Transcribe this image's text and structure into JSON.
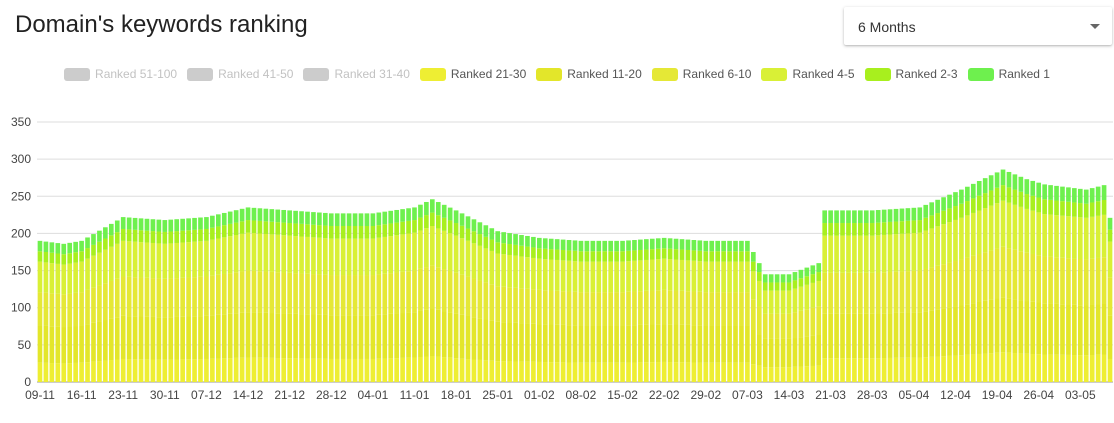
{
  "header": {
    "title": "Domain's keywords ranking",
    "period_value": "6 Months"
  },
  "colors": {
    "Ranked 51-100": "#cccccc",
    "Ranked 41-50": "#cccccc",
    "Ranked 31-40": "#cccccc",
    "Ranked 21-30": "#eeee33",
    "Ranked 11-20": "#e3e62a",
    "Ranked 6-10": "#e5e836",
    "Ranked 4-5": "#d9f036",
    "Ranked 2-3": "#a8ef1e",
    "Ranked 1": "#6ef04e"
  },
  "chart_data": {
    "type": "bar",
    "stacked": true,
    "title": "",
    "xlabel": "",
    "ylabel": "",
    "ylim": [
      0,
      350
    ],
    "yticks": [
      0,
      50,
      100,
      150,
      200,
      250,
      300,
      350
    ],
    "grid": true,
    "legend_position": "top",
    "x_start": "2019-11-09",
    "x_end": "2020-05-07",
    "xtick_labels": [
      "09-11",
      "16-11",
      "23-11",
      "30-11",
      "07-12",
      "14-12",
      "21-12",
      "28-12",
      "04-01",
      "11-01",
      "18-01",
      "25-01",
      "01-02",
      "08-02",
      "15-02",
      "22-02",
      "29-02",
      "07-03",
      "14-03",
      "21-03",
      "28-03",
      "05-04",
      "12-04",
      "19-04",
      "26-04",
      "03-05"
    ],
    "legend": [
      {
        "name": "Ranked 51-100",
        "visible": false
      },
      {
        "name": "Ranked 41-50",
        "visible": false
      },
      {
        "name": "Ranked 31-40",
        "visible": false
      },
      {
        "name": "Ranked 21-30",
        "visible": true
      },
      {
        "name": "Ranked 11-20",
        "visible": true
      },
      {
        "name": "Ranked 6-10",
        "visible": true
      },
      {
        "name": "Ranked 4-5",
        "visible": true
      },
      {
        "name": "Ranked 2-3",
        "visible": true
      },
      {
        "name": "Ranked 1",
        "visible": true
      }
    ],
    "key_points": {
      "x": [
        "2019-11-09",
        "2019-11-13",
        "2019-11-16",
        "2019-11-23",
        "2019-11-30",
        "2019-12-07",
        "2019-12-14",
        "2019-12-21",
        "2019-12-28",
        "2020-01-04",
        "2020-01-11",
        "2020-01-14",
        "2020-01-18",
        "2020-01-25",
        "2020-02-01",
        "2020-02-08",
        "2020-02-15",
        "2020-02-22",
        "2020-02-29",
        "2020-03-07",
        "2020-03-10",
        "2020-03-14",
        "2020-03-19",
        "2020-03-20",
        "2020-03-28",
        "2020-04-05",
        "2020-04-12",
        "2020-04-19",
        "2020-04-23",
        "2020-04-26",
        "2020-05-03",
        "2020-05-06",
        "2020-05-07"
      ],
      "series": [
        {
          "name": "Ranked 21-30",
          "values": [
            26,
            25,
            26,
            31,
            30,
            31,
            33,
            32,
            31,
            31,
            33,
            35,
            32,
            28,
            27,
            26,
            26,
            27,
            26,
            26,
            20,
            20,
            22,
            32,
            32,
            33,
            36,
            40,
            38,
            37,
            36,
            37,
            31
          ]
        },
        {
          "name": "Ranked 11-20",
          "values": [
            50,
            49,
            50,
            58,
            57,
            58,
            61,
            60,
            59,
            59,
            61,
            64,
            60,
            53,
            51,
            50,
            50,
            51,
            50,
            50,
            38,
            38,
            42,
            60,
            60,
            61,
            67,
            74,
            71,
            69,
            67,
            68,
            58
          ]
        },
        {
          "name": "Ranked 6-10",
          "values": [
            45,
            44,
            45,
            53,
            52,
            53,
            56,
            55,
            54,
            54,
            56,
            58,
            55,
            48,
            46,
            45,
            45,
            46,
            45,
            45,
            34,
            34,
            38,
            55,
            55,
            56,
            62,
            68,
            65,
            63,
            62,
            63,
            52
          ]
        },
        {
          "name": "Ranked 4-5",
          "values": [
            41,
            40,
            41,
            48,
            47,
            48,
            51,
            50,
            49,
            49,
            51,
            53,
            50,
            44,
            42,
            41,
            41,
            42,
            41,
            41,
            31,
            31,
            34,
            50,
            50,
            51,
            56,
            62,
            59,
            57,
            56,
            57,
            48
          ]
        },
        {
          "name": "Ranked 2-3",
          "values": [
            14,
            14,
            14,
            16,
            16,
            16,
            17,
            17,
            17,
            17,
            17,
            18,
            17,
            15,
            14,
            14,
            14,
            14,
            14,
            14,
            11,
            11,
            12,
            17,
            17,
            17,
            19,
            21,
            20,
            20,
            19,
            20,
            16
          ]
        },
        {
          "name": "Ranked 1",
          "values": [
            14,
            14,
            14,
            16,
            16,
            16,
            17,
            17,
            17,
            17,
            17,
            18,
            17,
            15,
            14,
            14,
            14,
            14,
            14,
            14,
            11,
            11,
            12,
            17,
            17,
            17,
            19,
            21,
            20,
            20,
            19,
            20,
            16
          ]
        }
      ]
    }
  }
}
